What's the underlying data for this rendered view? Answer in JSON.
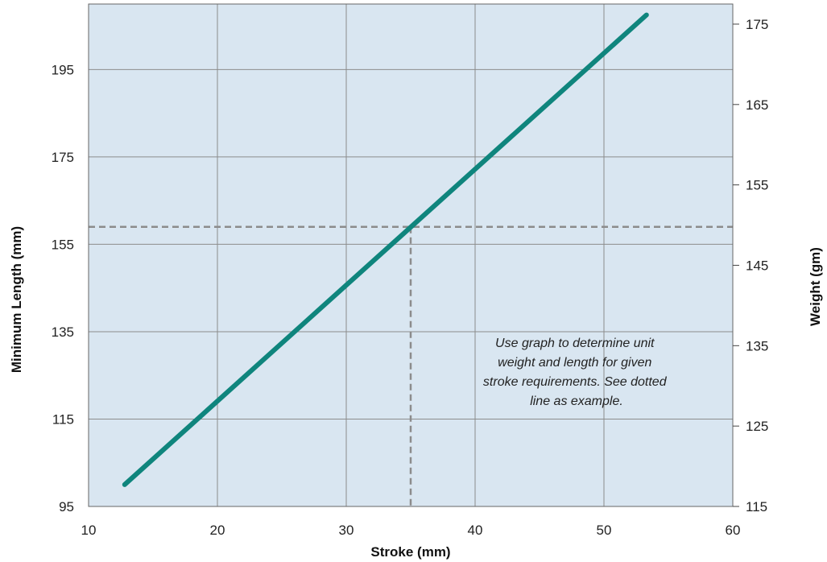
{
  "chart_data": {
    "type": "line",
    "title": "",
    "xlabel": "Stroke (mm)",
    "ylabel": "Minimum Length (mm)",
    "y2label": "Weight (gm)",
    "xlim": [
      10,
      60
    ],
    "ylim": [
      95,
      210
    ],
    "y2lim": [
      115,
      177.5
    ],
    "x_ticks": [
      10,
      20,
      30,
      40,
      50,
      60
    ],
    "y_ticks": [
      95,
      115,
      135,
      155,
      175,
      195
    ],
    "y2_ticks": [
      115,
      125,
      135,
      145,
      155,
      165,
      175
    ],
    "grid": true,
    "series": [
      {
        "x": [
          12.8,
          53.3
        ],
        "y": [
          100,
          207.5
        ]
      }
    ],
    "example": {
      "x": 35,
      "y": 159
    },
    "annotation": [
      "Use graph to determine unit",
      "weight and length for given",
      "stroke requirements. See dotted",
      "line as example."
    ],
    "colors": {
      "plot_background": "#d9e6f1",
      "series": "#0f857d",
      "grid": "#8c8c8c",
      "example_line": "#8c8c8c"
    }
  }
}
